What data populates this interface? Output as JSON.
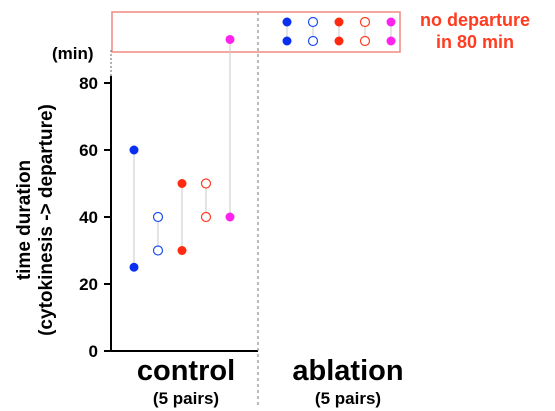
{
  "chart_data": {
    "type": "scatter",
    "ylabel_line1": "time duration",
    "ylabel_line2": "(cytokinesis -> departure)",
    "yunit": "(min)",
    "ylim": [
      0,
      90
    ],
    "yticks": [
      "0",
      "20",
      "40",
      "60",
      "80"
    ],
    "groups": [
      {
        "label": "control",
        "sublabel": "(5 pairs)"
      },
      {
        "label": "ablation",
        "sublabel": "(5 pairs)"
      }
    ],
    "annotation": {
      "line1": "no departure",
      "line2": "in 80 min",
      "color": "#ff3b20"
    },
    "control_pairs": [
      {
        "color": "#0a2ff0",
        "filled": true,
        "values": [
          60,
          25
        ]
      },
      {
        "color": "#1f4ff0",
        "filled": false,
        "values": [
          40,
          30
        ]
      },
      {
        "color": "#ff2a10",
        "filled": true,
        "values": [
          50,
          30
        ]
      },
      {
        "color": "#ff3b20",
        "filled": false,
        "values": [
          50,
          40
        ]
      },
      {
        "color": "#ff22ee",
        "filled": true,
        "values": [
          93,
          40
        ]
      }
    ],
    "ablation_pairs": [
      {
        "color": "#0a2ff0",
        "filled": true,
        "values": [
          "no departure",
          "no departure"
        ]
      },
      {
        "color": "#1f4ff0",
        "filled": false,
        "values": [
          "no departure",
          "no departure"
        ]
      },
      {
        "color": "#ff2a10",
        "filled": true,
        "values": [
          "no departure",
          "no departure"
        ]
      },
      {
        "color": "#ff3b20",
        "filled": false,
        "values": [
          "no departure",
          "no departure"
        ]
      },
      {
        "color": "#ff22ee",
        "filled": true,
        "values": [
          "no departure",
          "no departure"
        ]
      }
    ]
  }
}
